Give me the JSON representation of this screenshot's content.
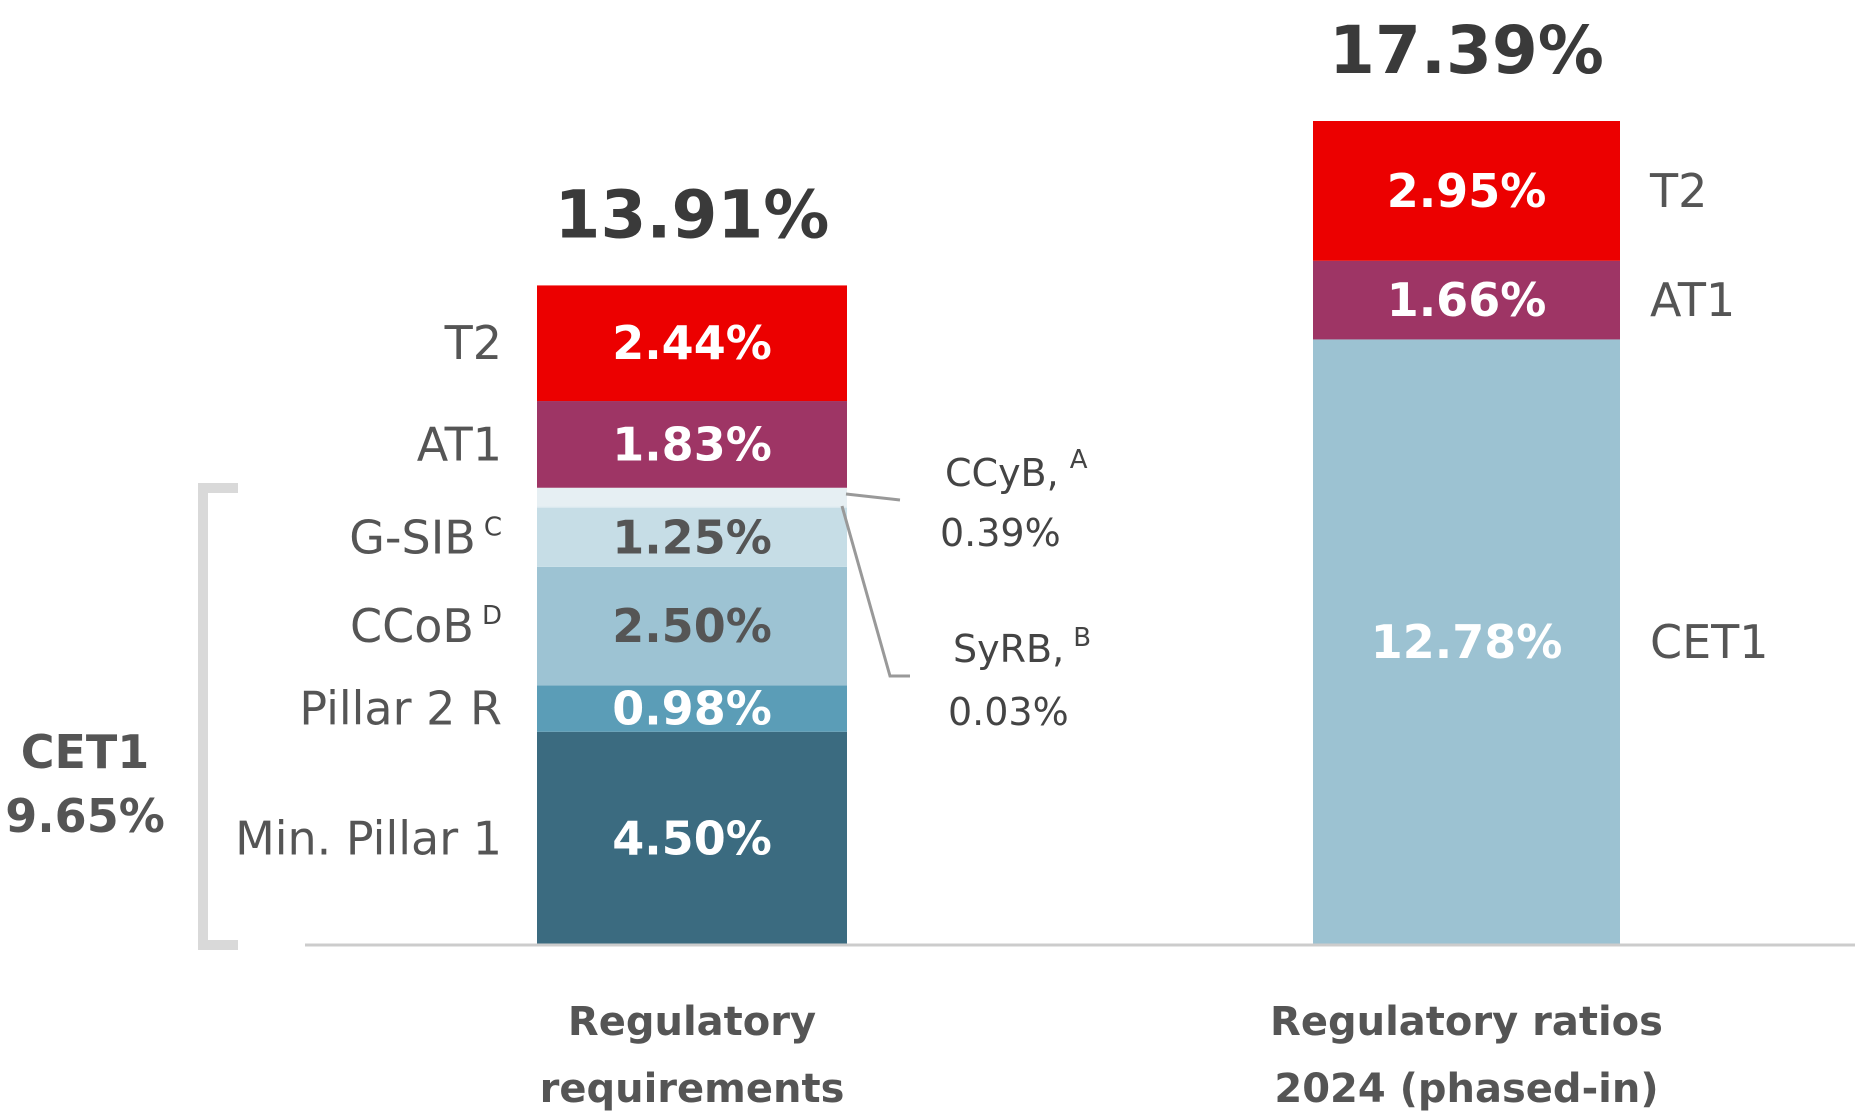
{
  "chart_data": {
    "type": "bar",
    "stacked": true,
    "categories": [
      "Regulatory\nrequirements",
      "Regulatory ratios\n2024 (phased-in)"
    ],
    "category_lines": [
      [
        "Regulatory",
        "requirements"
      ],
      [
        "Regulatory ratios",
        "2024 (phased-in)"
      ]
    ],
    "totals": [
      "13.91%",
      "17.39%"
    ],
    "ylim": [
      0,
      17.39
    ],
    "bars": [
      {
        "category": "Regulatory requirements",
        "segments": [
          {
            "name": "Min. Pillar 1",
            "sup": "",
            "value": 4.5,
            "label": "4.50%",
            "color": "#3b6b80",
            "text_color": "#ffffff"
          },
          {
            "name": "Pillar 2 R",
            "sup": "",
            "value": 0.98,
            "label": "0.98%",
            "color": "#5b9db7",
            "text_color": "#ffffff"
          },
          {
            "name": "CCoB",
            "sup": "D",
            "value": 2.5,
            "label": "2.50%",
            "color": "#9dc3d3",
            "text_color": "#555555"
          },
          {
            "name": "G-SIB",
            "sup": "C",
            "value": 1.25,
            "label": "1.25%",
            "color": "#c6dde6",
            "text_color": "#555555"
          },
          {
            "name": "SyRB",
            "sup": "B",
            "value": 0.03,
            "label": "",
            "color": "#dbe9ef",
            "text_color": "#555555"
          },
          {
            "name": "CCyB",
            "sup": "A",
            "value": 0.39,
            "label": "",
            "color": "#e6eff3",
            "text_color": "#555555"
          },
          {
            "name": "AT1",
            "sup": "",
            "value": 1.83,
            "label": "1.83%",
            "color": "#9e3565",
            "text_color": "#ffffff"
          },
          {
            "name": "T2",
            "sup": "",
            "value": 2.44,
            "label": "2.44%",
            "color": "#ec0000",
            "text_color": "#ffffff"
          }
        ]
      },
      {
        "category": "Regulatory ratios 2024 (phased-in)",
        "segments": [
          {
            "name": "CET1",
            "value": 12.78,
            "label": "12.78%",
            "color": "#9cc2d2",
            "text_color": "#ffffff"
          },
          {
            "name": "AT1",
            "value": 1.66,
            "label": "1.66%",
            "color": "#9e3565",
            "text_color": "#ffffff"
          },
          {
            "name": "T2",
            "value": 2.95,
            "label": "2.95%",
            "color": "#ec0000",
            "text_color": "#ffffff"
          }
        ]
      }
    ],
    "annotations": {
      "ccyb": {
        "label": "CCyB,",
        "sup": "A",
        "value": "0.39%"
      },
      "syrb": {
        "label": "SyRB,",
        "sup": "B",
        "value": "0.03%"
      },
      "cet1_bracket": {
        "label": "CET1",
        "value": "9.65%"
      }
    },
    "colors": {
      "axis": "#cccccc",
      "bracket": "#d9d9d9",
      "leader": "#999999"
    }
  }
}
